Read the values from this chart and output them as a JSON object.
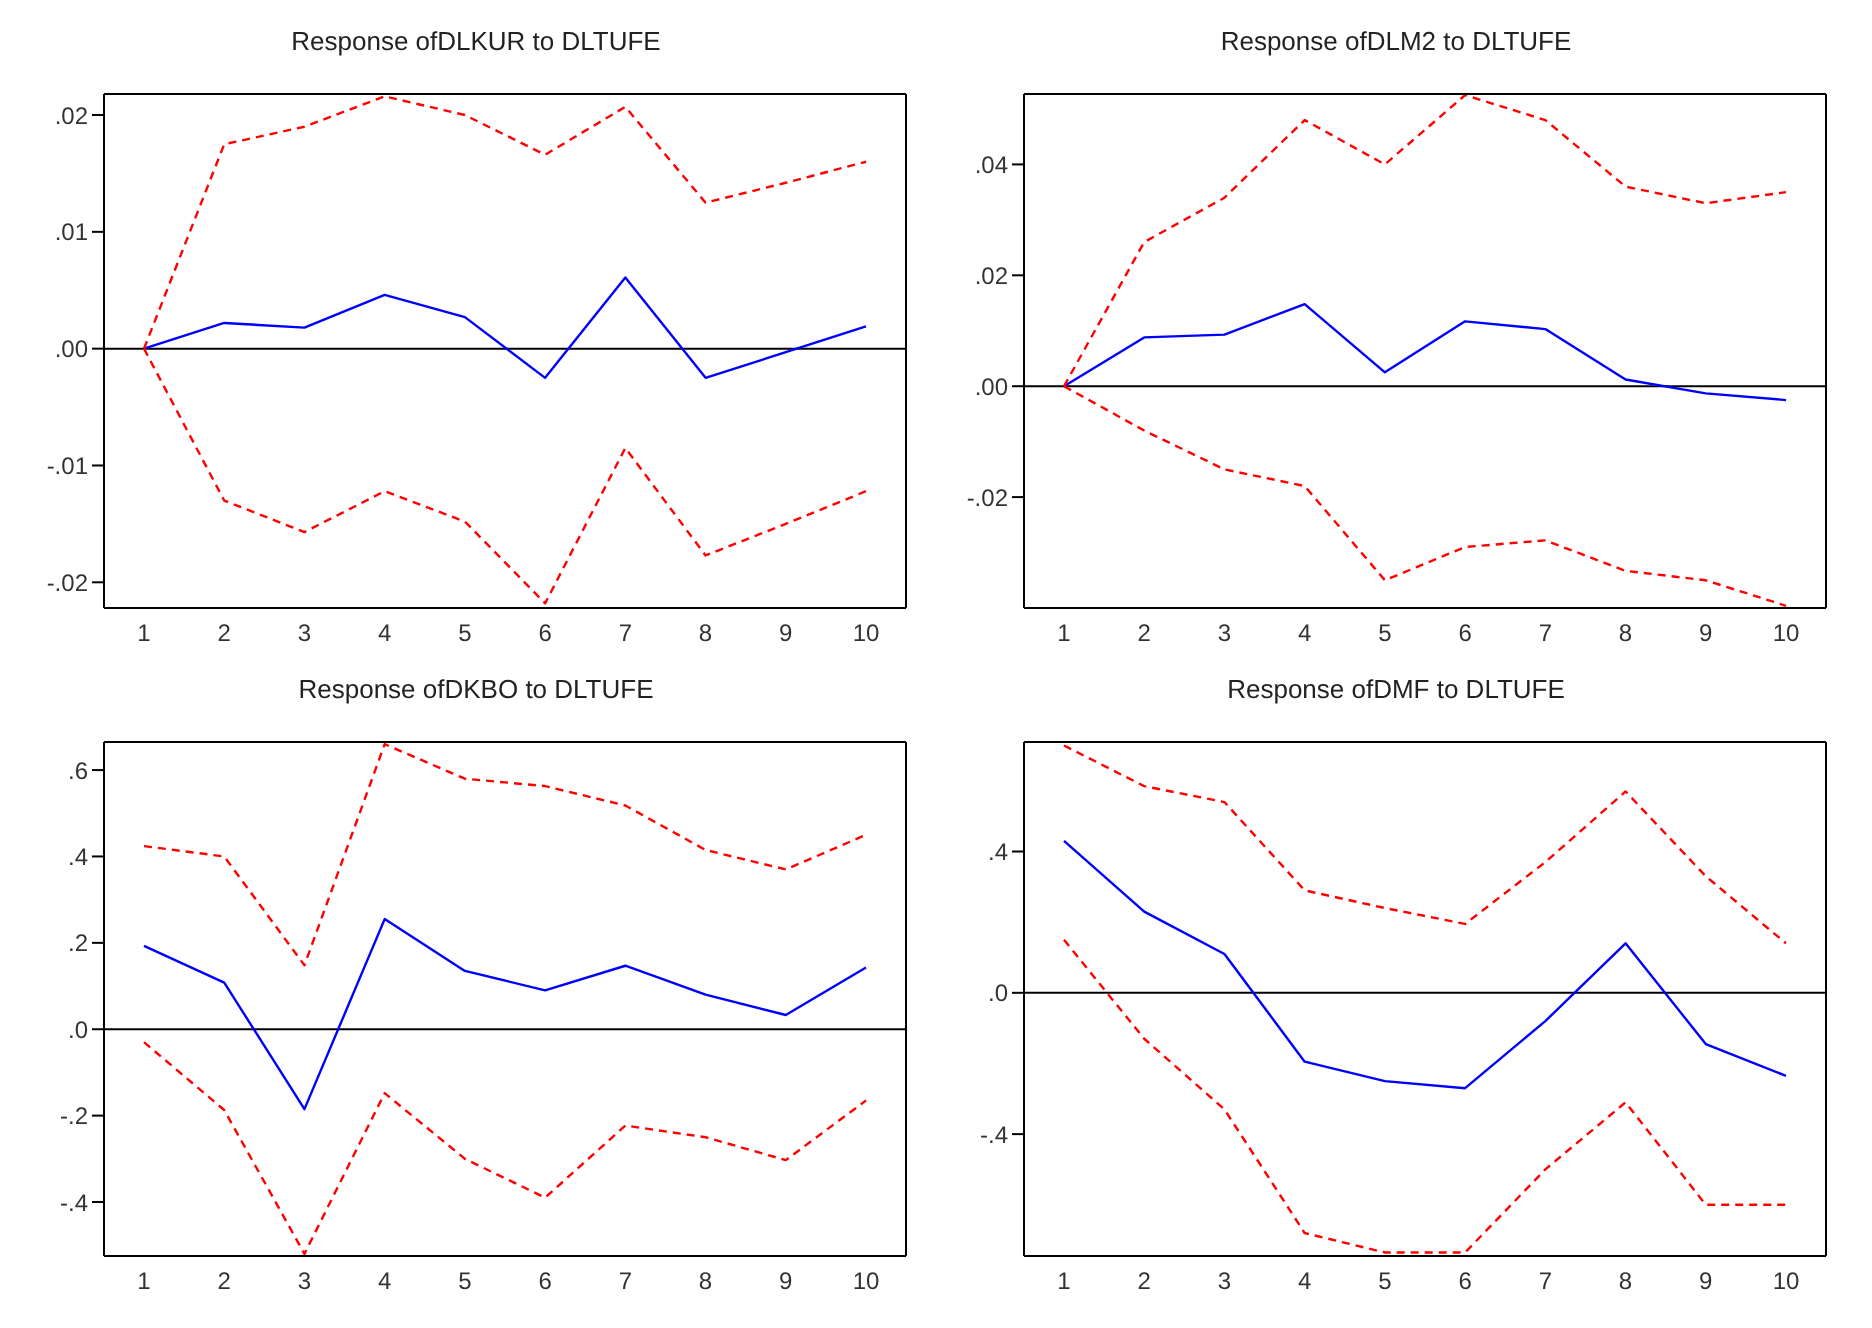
{
  "chart_data": [
    {
      "type": "line",
      "title": "Response ofDLKUR to DLTUFE",
      "categories": [
        "1",
        "2",
        "3",
        "4",
        "5",
        "6",
        "7",
        "8",
        "9",
        "10"
      ],
      "marker": "none",
      "ylim": [
        -0.0222,
        0.0218
      ],
      "yticks": [
        {
          "value": -0.02,
          "label": "-.02"
        },
        {
          "value": -0.01,
          "label": "-.01"
        },
        {
          "value": 0,
          "label": ".00"
        },
        {
          "value": 0.01,
          "label": ".01"
        },
        {
          "value": 0.02,
          "label": ".02"
        }
      ],
      "ref_lines": [
        {
          "axis": "y",
          "value": 0,
          "color": "#000000"
        }
      ],
      "series": [
        {
          "color": "#0000ff",
          "line_style": "solid",
          "values": [
            0,
            0.0022,
            0.0018,
            0.0046,
            0.0027,
            -0.0025,
            0.0061,
            -0.0025,
            -0.0003,
            0.0019
          ]
        },
        {
          "color": "#ff0000",
          "line_style": "dashed",
          "values": [
            0,
            0.0175,
            0.019,
            0.0216,
            0.02,
            0.0166,
            0.0207,
            0.0125,
            0.0142,
            0.016
          ]
        },
        {
          "color": "#ff0000",
          "line_style": "dashed",
          "values": [
            0,
            -0.013,
            -0.0157,
            -0.0122,
            -0.0148,
            -0.0218,
            -0.0085,
            -0.0177,
            -0.015,
            -0.0122
          ]
        }
      ]
    },
    {
      "type": "line",
      "title": "Response ofDLM2 to DLTUFE",
      "categories": [
        "1",
        "2",
        "3",
        "4",
        "5",
        "6",
        "7",
        "8",
        "9",
        "10"
      ],
      "marker": "none",
      "ylim": [
        -0.04,
        0.0527
      ],
      "yticks": [
        {
          "value": -0.02,
          "label": "-.02"
        },
        {
          "value": 0,
          "label": ".00"
        },
        {
          "value": 0.02,
          "label": ".02"
        },
        {
          "value": 0.04,
          "label": ".04"
        }
      ],
      "ref_lines": [
        {
          "axis": "y",
          "value": 0,
          "color": "#000000"
        }
      ],
      "series": [
        {
          "color": "#0000ff",
          "line_style": "solid",
          "values": [
            0,
            0.0088,
            0.0093,
            0.0148,
            0.0025,
            0.0117,
            0.0103,
            0.0012,
            -0.0013,
            -0.0025
          ]
        },
        {
          "color": "#ff0000",
          "line_style": "dashed",
          "values": [
            0,
            0.026,
            0.034,
            0.048,
            0.04,
            0.0525,
            0.048,
            0.036,
            0.033,
            0.035
          ]
        },
        {
          "color": "#ff0000",
          "line_style": "dashed",
          "values": [
            0,
            -0.008,
            -0.015,
            -0.018,
            -0.035,
            -0.029,
            -0.0278,
            -0.0333,
            -0.035,
            -0.0396
          ]
        }
      ]
    },
    {
      "type": "line",
      "title": "Response ofDKBO to DLTUFE",
      "categories": [
        "1",
        "2",
        "3",
        "4",
        "5",
        "6",
        "7",
        "8",
        "9",
        "10"
      ],
      "marker": "none",
      "ylim": [
        -0.525,
        0.665
      ],
      "yticks": [
        {
          "value": -0.4,
          "label": "-.4"
        },
        {
          "value": -0.2,
          "label": "-.2"
        },
        {
          "value": 0,
          "label": ".0"
        },
        {
          "value": 0.2,
          "label": ".2"
        },
        {
          "value": 0.4,
          "label": ".4"
        },
        {
          "value": 0.6,
          "label": ".6"
        }
      ],
      "ref_lines": [
        {
          "axis": "y",
          "value": 0,
          "color": "#000000"
        }
      ],
      "series": [
        {
          "color": "#0000ff",
          "line_style": "solid",
          "values": [
            0.193,
            0.108,
            -0.185,
            0.255,
            0.135,
            0.09,
            0.147,
            0.08,
            0.033,
            0.143
          ]
        },
        {
          "color": "#ff0000",
          "line_style": "dashed",
          "values": [
            0.424,
            0.4,
            0.148,
            0.66,
            0.58,
            0.563,
            0.518,
            0.415,
            0.37,
            0.45
          ]
        },
        {
          "color": "#ff0000",
          "line_style": "dashed",
          "values": [
            -0.03,
            -0.187,
            -0.52,
            -0.148,
            -0.3,
            -0.39,
            -0.223,
            -0.25,
            -0.303,
            -0.165
          ]
        }
      ]
    },
    {
      "type": "line",
      "title": "Response ofDMF to DLTUFE",
      "categories": [
        "1",
        "2",
        "3",
        "4",
        "5",
        "6",
        "7",
        "8",
        "9",
        "10"
      ],
      "marker": "none",
      "ylim": [
        -0.745,
        0.71
      ],
      "yticks": [
        {
          "value": -0.4,
          "label": "-.4"
        },
        {
          "value": 0,
          "label": ".0"
        },
        {
          "value": 0.4,
          "label": ".4"
        }
      ],
      "ref_lines": [
        {
          "axis": "y",
          "value": 0,
          "color": "#000000"
        }
      ],
      "series": [
        {
          "color": "#0000ff",
          "line_style": "solid",
          "values": [
            0.43,
            0.23,
            0.11,
            -0.195,
            -0.25,
            -0.27,
            -0.08,
            0.14,
            -0.145,
            -0.235
          ]
        },
        {
          "color": "#ff0000",
          "line_style": "dashed",
          "values": [
            0.7,
            0.585,
            0.54,
            0.29,
            0.24,
            0.195,
            0.37,
            0.57,
            0.33,
            0.14
          ]
        },
        {
          "color": "#ff0000",
          "line_style": "dashed",
          "values": [
            0.15,
            -0.13,
            -0.33,
            -0.68,
            -0.735,
            -0.735,
            -0.5,
            -0.31,
            -0.6,
            -0.6
          ]
        }
      ]
    }
  ]
}
